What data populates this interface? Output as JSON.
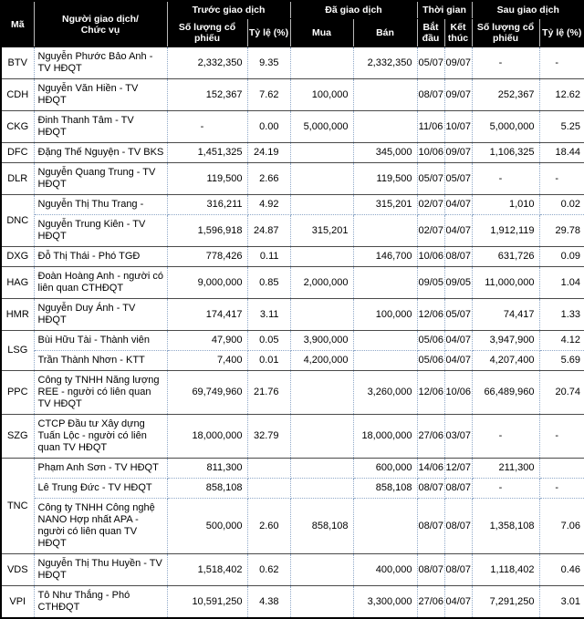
{
  "colors": {
    "header_bg": "#000000",
    "header_text": "#ffffff",
    "grid_dotted": "#8fa8c8",
    "group_separator": "#4a4a4a",
    "outer_border": "#000000"
  },
  "header": {
    "ma": "Mã",
    "trader_line1": "Người giao dịch/",
    "trader_line2": "Chức vụ",
    "groups": [
      {
        "label": "Trước giao dịch",
        "cols": [
          "Số lượng cổ phiếu",
          "Tỷ lệ (%)"
        ]
      },
      {
        "label": "Đã giao dịch",
        "cols": [
          "Mua",
          "Bán"
        ]
      },
      {
        "label": "Thời gian",
        "cols": [
          "Bắt đầu",
          "Kết thúc"
        ]
      },
      {
        "label": "Sau giao dịch",
        "cols": [
          "Số lượng cổ phiếu",
          "Tỷ lệ (%)"
        ]
      }
    ]
  },
  "groups": [
    {
      "code": "BTV",
      "rows": [
        {
          "name": "Nguyễn Phước Bảo Anh - TV HĐQT",
          "bq": "2,332,350",
          "bp": "9.35",
          "buy": "",
          "sell": "2,332,350",
          "s": "05/07",
          "e": "09/07",
          "aq": "-",
          "ap": "-"
        }
      ]
    },
    {
      "code": "CDH",
      "rows": [
        {
          "name": "Nguyễn Văn Hiền - TV HĐQT",
          "bq": "152,367",
          "bp": "7.62",
          "buy": "100,000",
          "sell": "",
          "s": "08/07",
          "e": "09/07",
          "aq": "252,367",
          "ap": "12.62"
        }
      ]
    },
    {
      "code": "CKG",
      "rows": [
        {
          "name": "Đinh Thanh Tâm - TV HĐQT",
          "bq": "-",
          "bp": "0.00",
          "buy": "5,000,000",
          "sell": "",
          "s": "11/06",
          "e": "10/07",
          "aq": "5,000,000",
          "ap": "5.25"
        }
      ]
    },
    {
      "code": "DFC",
      "rows": [
        {
          "name": "Đặng Thế Nguyện - TV BKS",
          "bq": "1,451,325",
          "bp": "24.19",
          "buy": "",
          "sell": "345,000",
          "s": "10/06",
          "e": "09/07",
          "aq": "1,106,325",
          "ap": "18.44"
        }
      ]
    },
    {
      "code": "DLR",
      "rows": [
        {
          "name": "Nguyễn Quang Trung - TV HĐQT",
          "bq": "119,500",
          "bp": "2.66",
          "buy": "",
          "sell": "119,500",
          "s": "05/07",
          "e": "05/07",
          "aq": "-",
          "ap": "-"
        }
      ]
    },
    {
      "code": "DNC",
      "rows": [
        {
          "name": "Nguyễn Thị Thu Trang -",
          "bq": "316,211",
          "bp": "4.92",
          "buy": "",
          "sell": "315,201",
          "s": "02/07",
          "e": "04/07",
          "aq": "1,010",
          "ap": "0.02"
        },
        {
          "name": "Nguyễn Trung Kiên - TV HĐQT",
          "bq": "1,596,918",
          "bp": "24.87",
          "buy": "315,201",
          "sell": "",
          "s": "02/07",
          "e": "04/07",
          "aq": "1,912,119",
          "ap": "29.78"
        }
      ]
    },
    {
      "code": "DXG",
      "rows": [
        {
          "name": "Đỗ Thị Thái - Phó TGĐ",
          "bq": "778,426",
          "bp": "0.11",
          "buy": "",
          "sell": "146,700",
          "s": "10/06",
          "e": "08/07",
          "aq": "631,726",
          "ap": "0.09"
        }
      ]
    },
    {
      "code": "HAG",
      "rows": [
        {
          "name": "Đoàn Hoàng Anh - người có liên quan CTHĐQT",
          "bq": "9,000,000",
          "bp": "0.85",
          "buy": "2,000,000",
          "sell": "",
          "s": "09/05",
          "e": "09/05",
          "aq": "11,000,000",
          "ap": "1.04"
        }
      ]
    },
    {
      "code": "HMR",
      "rows": [
        {
          "name": "Nguyễn Duy Ánh - TV HĐQT",
          "bq": "174,417",
          "bp": "3.11",
          "buy": "",
          "sell": "100,000",
          "s": "12/06",
          "e": "05/07",
          "aq": "74,417",
          "ap": "1.33"
        }
      ]
    },
    {
      "code": "LSG",
      "rows": [
        {
          "name": "Bùi Hữu Tài - Thành viên",
          "bq": "47,900",
          "bp": "0.05",
          "buy": "3,900,000",
          "sell": "",
          "s": "05/06",
          "e": "04/07",
          "aq": "3,947,900",
          "ap": "4.12"
        },
        {
          "name": "Trần Thành Nhơn - KTT",
          "bq": "7,400",
          "bp": "0.01",
          "buy": "4,200,000",
          "sell": "",
          "s": "05/06",
          "e": "04/07",
          "aq": "4,207,400",
          "ap": "5.69"
        }
      ]
    },
    {
      "code": "PPC",
      "rows": [
        {
          "name": "Công ty TNHH Năng lượng REE - người có liên quan TV HĐQT",
          "bq": "69,749,960",
          "bp": "21.76",
          "buy": "",
          "sell": "3,260,000",
          "s": "12/06",
          "e": "10/06",
          "aq": "66,489,960",
          "ap": "20.74"
        }
      ]
    },
    {
      "code": "SZG",
      "rows": [
        {
          "name": "CTCP Đầu tư Xây dựng Tuấn Lộc - người có liên quan TV HĐQT",
          "bq": "18,000,000",
          "bp": "32.79",
          "buy": "",
          "sell": "18,000,000",
          "s": "27/06",
          "e": "03/07",
          "aq": "-",
          "ap": "-"
        }
      ]
    },
    {
      "code": "TNC",
      "rows": [
        {
          "name": "Phạm Anh Sơn - TV HĐQT",
          "bq": "811,300",
          "bp": "",
          "buy": "",
          "sell": "600,000",
          "s": "14/06",
          "e": "12/07",
          "aq": "211,300",
          "ap": ""
        },
        {
          "name": "Lê Trung Đức - TV HĐQT",
          "bq": "858,108",
          "bp": "",
          "buy": "",
          "sell": "858,108",
          "s": "08/07",
          "e": "08/07",
          "aq": "-",
          "ap": "-"
        },
        {
          "name": "Công ty TNHH Công nghệ NANO Hợp nhất APA - người có liên quan TV HĐQT",
          "bq": "500,000",
          "bp": "2.60",
          "buy": "858,108",
          "sell": "",
          "s": "08/07",
          "e": "08/07",
          "aq": "1,358,108",
          "ap": "7.06"
        }
      ]
    },
    {
      "code": "VDS",
      "rows": [
        {
          "name": "Nguyễn Thị Thu Huyền - TV HĐQT",
          "bq": "1,518,402",
          "bp": "0.62",
          "buy": "",
          "sell": "400,000",
          "s": "08/07",
          "e": "08/07",
          "aq": "1,118,402",
          "ap": "0.46"
        }
      ]
    },
    {
      "code": "VPI",
      "rows": [
        {
          "name": "Tô Như Thắng - Phó CTHĐQT",
          "bq": "10,591,250",
          "bp": "4.38",
          "buy": "",
          "sell": "3,300,000",
          "s": "27/06",
          "e": "04/07",
          "aq": "7,291,250",
          "ap": "3.01"
        }
      ]
    }
  ],
  "chart_data": {
    "type": "table",
    "title": "",
    "columns": [
      "Mã",
      "Người giao dịch/Chức vụ",
      "Trước giao dịch - Số lượng cổ phiếu",
      "Trước giao dịch - Tỷ lệ (%)",
      "Đã giao dịch - Mua",
      "Đã giao dịch - Bán",
      "Thời gian - Bắt đầu",
      "Thời gian - Kết thúc",
      "Sau giao dịch - Số lượng cổ phiếu",
      "Sau giao dịch - Tỷ lệ (%)"
    ],
    "rows": [
      [
        "BTV",
        "Nguyễn Phước Bảo Anh - TV HĐQT",
        "2,332,350",
        "9.35",
        "",
        "2,332,350",
        "05/07",
        "09/07",
        "-",
        "-"
      ],
      [
        "CDH",
        "Nguyễn Văn Hiền - TV HĐQT",
        "152,367",
        "7.62",
        "100,000",
        "",
        "08/07",
        "09/07",
        "252,367",
        "12.62"
      ],
      [
        "CKG",
        "Đinh Thanh Tâm - TV HĐQT",
        "-",
        "0.00",
        "5,000,000",
        "",
        "11/06",
        "10/07",
        "5,000,000",
        "5.25"
      ],
      [
        "DFC",
        "Đặng Thế Nguyện - TV BKS",
        "1,451,325",
        "24.19",
        "",
        "345,000",
        "10/06",
        "09/07",
        "1,106,325",
        "18.44"
      ],
      [
        "DLR",
        "Nguyễn Quang Trung - TV HĐQT",
        "119,500",
        "2.66",
        "",
        "119,500",
        "05/07",
        "05/07",
        "-",
        "-"
      ],
      [
        "DNC",
        "Nguyễn Thị Thu Trang -",
        "316,211",
        "4.92",
        "",
        "315,201",
        "02/07",
        "04/07",
        "1,010",
        "0.02"
      ],
      [
        "DNC",
        "Nguyễn Trung Kiên - TV HĐQT",
        "1,596,918",
        "24.87",
        "315,201",
        "",
        "02/07",
        "04/07",
        "1,912,119",
        "29.78"
      ],
      [
        "DXG",
        "Đỗ Thị Thái - Phó TGĐ",
        "778,426",
        "0.11",
        "",
        "146,700",
        "10/06",
        "08/07",
        "631,726",
        "0.09"
      ],
      [
        "HAG",
        "Đoàn Hoàng Anh - người có liên quan CTHĐQT",
        "9,000,000",
        "0.85",
        "2,000,000",
        "",
        "09/05",
        "09/05",
        "11,000,000",
        "1.04"
      ],
      [
        "HMR",
        "Nguyễn Duy Ánh - TV HĐQT",
        "174,417",
        "3.11",
        "",
        "100,000",
        "12/06",
        "05/07",
        "74,417",
        "1.33"
      ],
      [
        "LSG",
        "Bùi Hữu Tài - Thành viên",
        "47,900",
        "0.05",
        "3,900,000",
        "",
        "05/06",
        "04/07",
        "3,947,900",
        "4.12"
      ],
      [
        "LSG",
        "Trần Thành Nhơn - KTT",
        "7,400",
        "0.01",
        "4,200,000",
        "",
        "05/06",
        "04/07",
        "4,207,400",
        "5.69"
      ],
      [
        "PPC",
        "Công ty TNHH Năng lượng REE - người có liên quan TV HĐQT",
        "69,749,960",
        "21.76",
        "",
        "3,260,000",
        "12/06",
        "10/06",
        "66,489,960",
        "20.74"
      ],
      [
        "SZG",
        "CTCP Đầu tư Xây dựng Tuấn Lộc - người có liên quan TV HĐQT",
        "18,000,000",
        "32.79",
        "",
        "18,000,000",
        "27/06",
        "03/07",
        "-",
        "-"
      ],
      [
        "TNC",
        "Phạm Anh Sơn - TV HĐQT",
        "811,300",
        "",
        "",
        "600,000",
        "14/06",
        "12/07",
        "211,300",
        ""
      ],
      [
        "TNC",
        "Lê Trung Đức - TV HĐQT",
        "858,108",
        "",
        "",
        "858,108",
        "08/07",
        "08/07",
        "-",
        "-"
      ],
      [
        "TNC",
        "Công ty TNHH Công nghệ NANO Hợp nhất APA - người có liên quan TV HĐQT",
        "500,000",
        "2.60",
        "858,108",
        "",
        "08/07",
        "08/07",
        "1,358,108",
        "7.06"
      ],
      [
        "VDS",
        "Nguyễn Thị Thu Huyền - TV HĐQT",
        "1,518,402",
        "0.62",
        "",
        "400,000",
        "08/07",
        "08/07",
        "1,118,402",
        "0.46"
      ],
      [
        "VPI",
        "Tô Như Thắng - Phó CTHĐQT",
        "10,591,250",
        "4.38",
        "",
        "3,300,000",
        "27/06",
        "04/07",
        "7,291,250",
        "3.01"
      ]
    ]
  }
}
